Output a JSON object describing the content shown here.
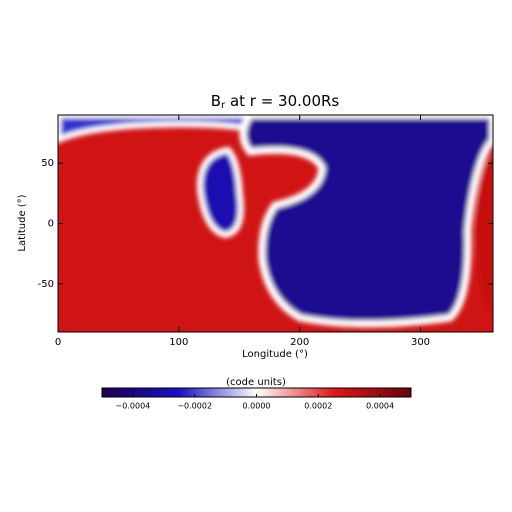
{
  "chart_data": {
    "type": "heatmap",
    "title": {
      "symbol": "B",
      "subscript": "r",
      "rest": " at r = 30.00Rs"
    },
    "x_label": "Longitude (°)",
    "y_label": "Latitude (°)",
    "xlim": [
      0,
      360
    ],
    "ylim": [
      -90,
      90
    ],
    "xticks": [
      0,
      100,
      200,
      300
    ],
    "yticks": [
      -50,
      0,
      50
    ],
    "colorbar": {
      "label": "(code units)",
      "zlim": [
        -0.0005,
        0.0005
      ],
      "ticks": [
        {
          "value": -0.0004,
          "label": "−0.0004"
        },
        {
          "value": -0.0002,
          "label": "−0.0002"
        },
        {
          "value": 0,
          "label": "0.0000"
        },
        {
          "value": 0.0002,
          "label": "0.0002"
        },
        {
          "value": 0.0004,
          "label": "0.0004"
        }
      ],
      "colors": [
        "#1c0050",
        "#1a10c8",
        "#ffffff",
        "#e01818",
        "#6a0010"
      ]
    }
  }
}
